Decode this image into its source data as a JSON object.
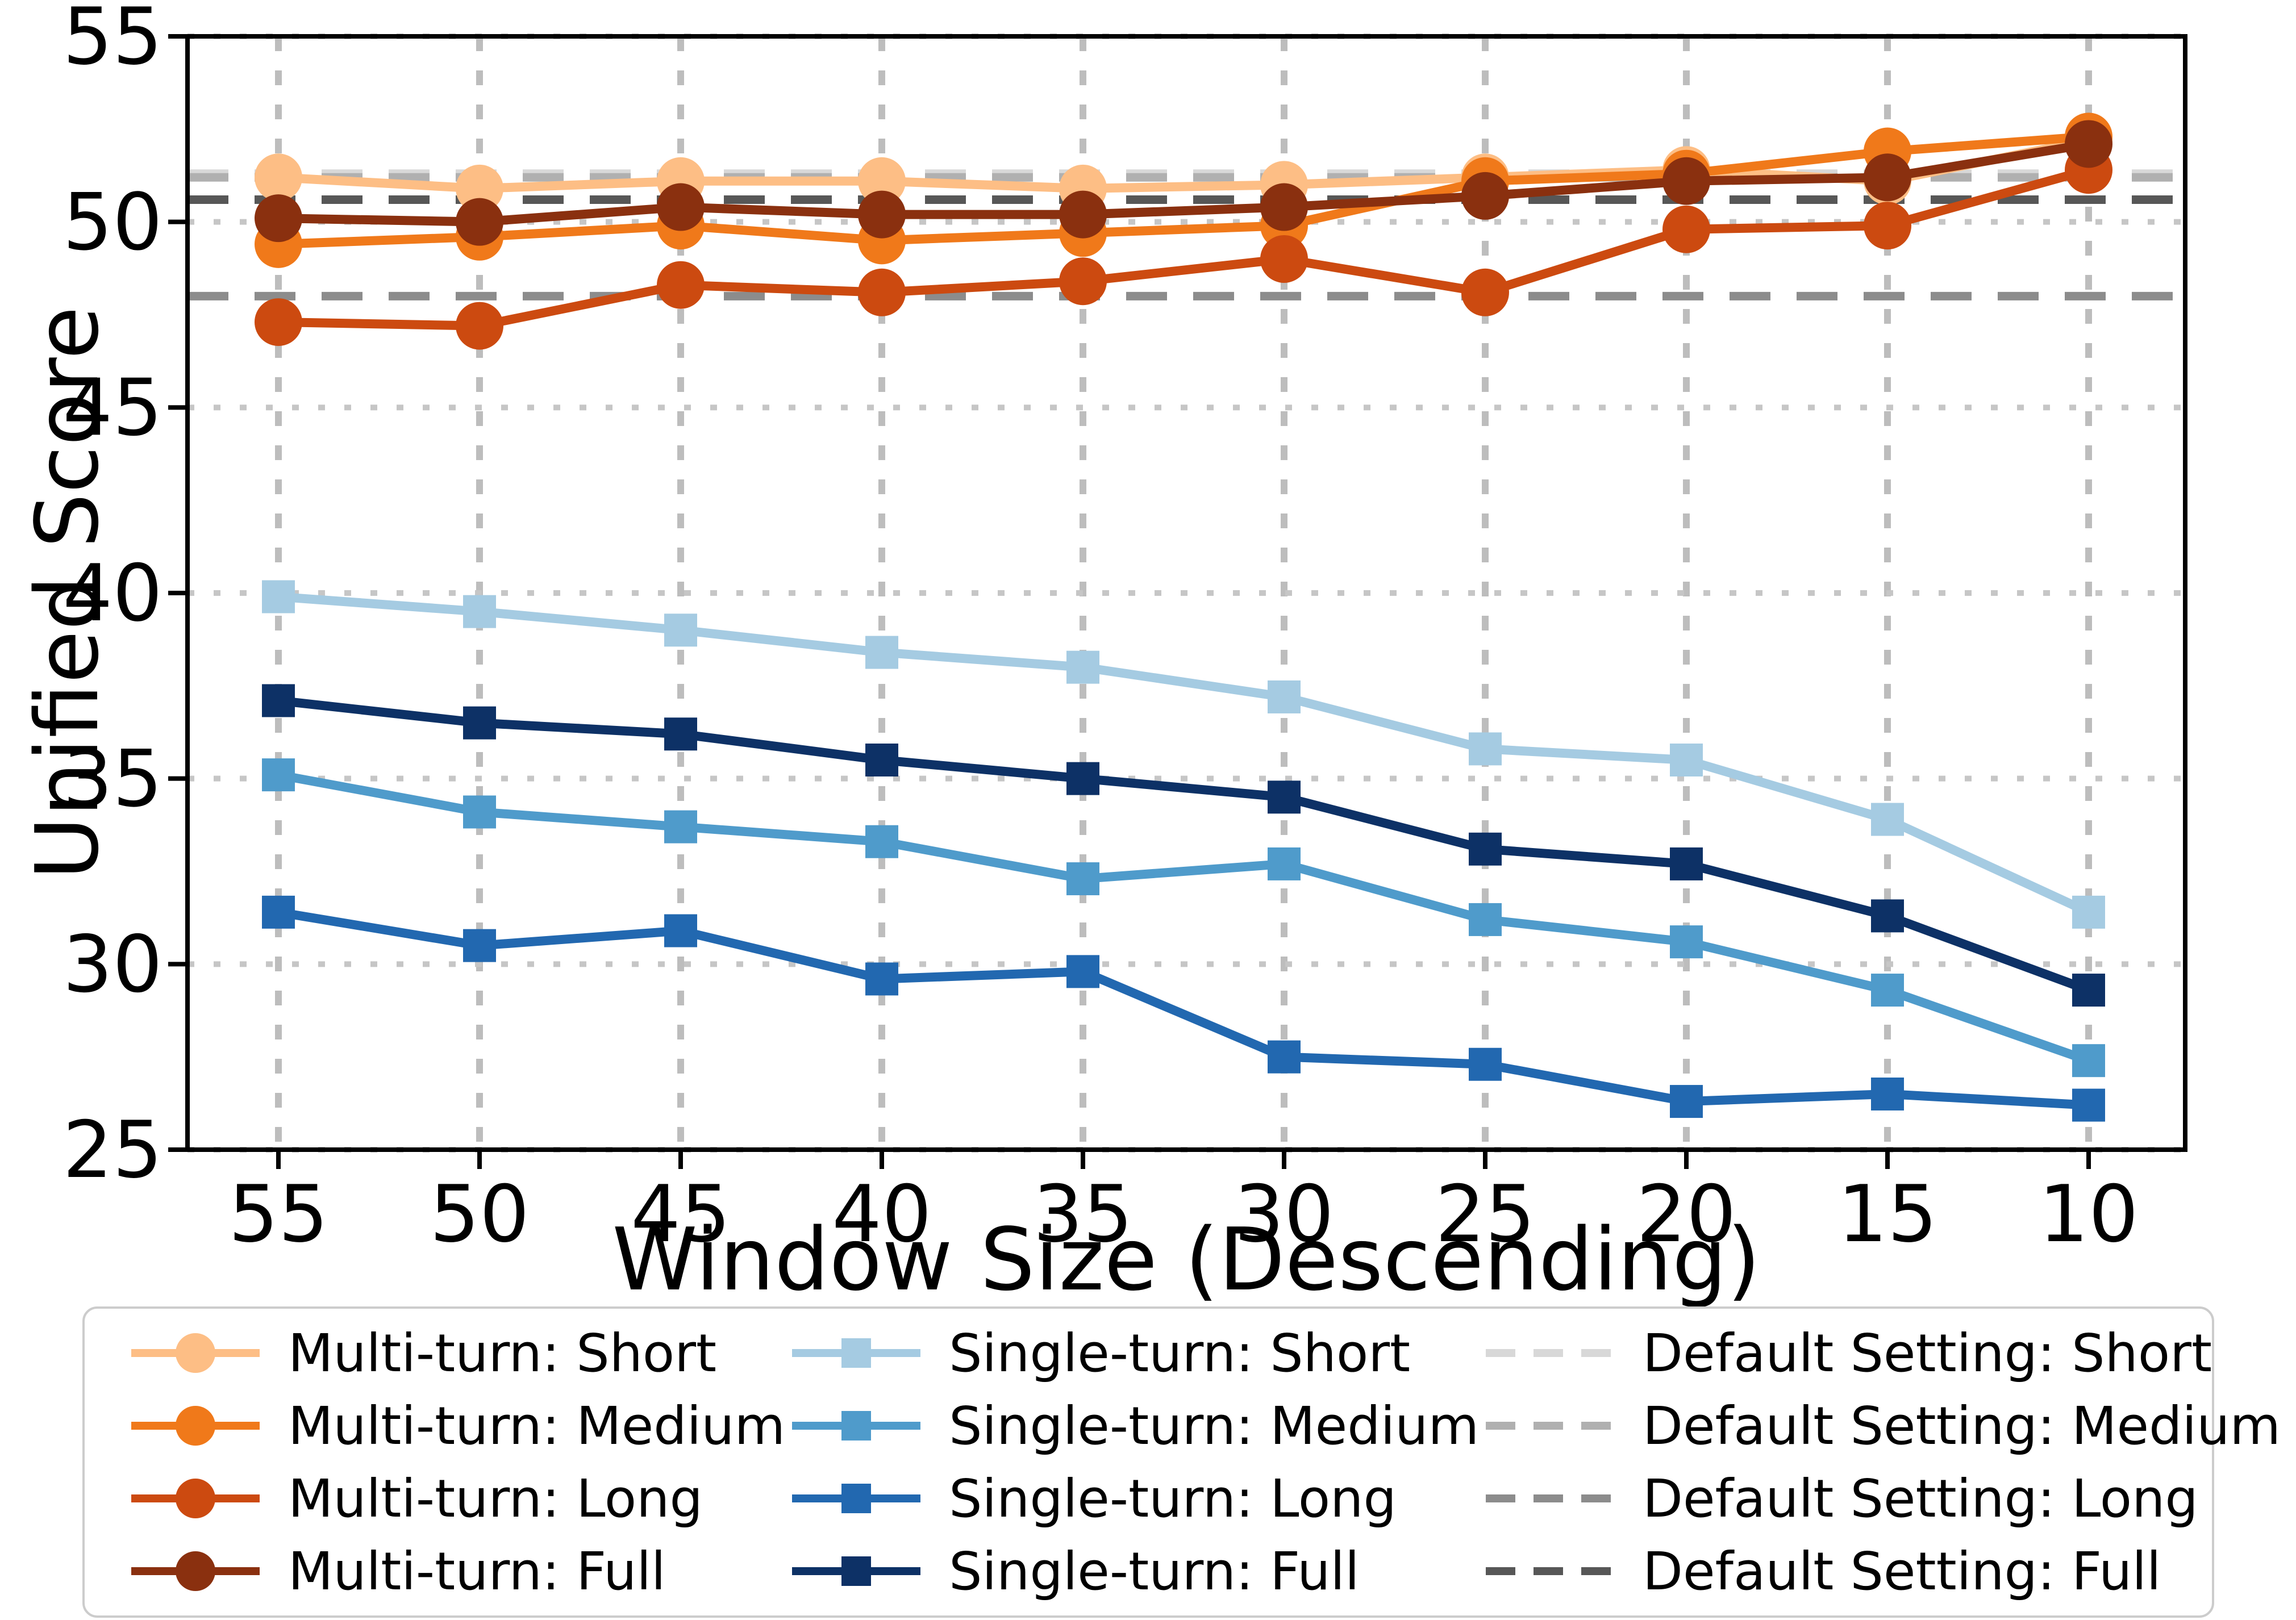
{
  "chart_data": {
    "type": "line",
    "title": "",
    "xlabel": "Window Size (Descending)",
    "ylabel": "Unified Score",
    "x": [
      55,
      50,
      45,
      40,
      35,
      30,
      25,
      20,
      15,
      10
    ],
    "x_order": "descending",
    "ylim": [
      25,
      55
    ],
    "yticks": [
      25,
      30,
      35,
      40,
      45,
      50,
      55
    ],
    "grid": "dotted",
    "legend_position": "below",
    "series": [
      {
        "name": "Multi-turn: Short",
        "group": "multi-turn",
        "marker": "circle",
        "color": "#fdbe85",
        "values": [
          51.2,
          50.9,
          51.1,
          51.1,
          50.9,
          51.0,
          51.2,
          51.4,
          51.1,
          52.2
        ]
      },
      {
        "name": "Multi-turn: Medium",
        "group": "multi-turn",
        "marker": "circle",
        "color": "#f0791a",
        "values": [
          49.4,
          49.6,
          49.9,
          49.5,
          49.7,
          49.9,
          51.1,
          51.3,
          51.9,
          52.3
        ]
      },
      {
        "name": "Multi-turn: Long",
        "group": "multi-turn",
        "marker": "circle",
        "color": "#cc4a10",
        "values": [
          47.3,
          47.2,
          48.3,
          48.1,
          48.4,
          49.0,
          48.1,
          49.8,
          49.9,
          51.4
        ]
      },
      {
        "name": "Multi-turn: Full",
        "group": "multi-turn",
        "marker": "circle",
        "color": "#8a300f",
        "values": [
          50.1,
          50.0,
          50.4,
          50.2,
          50.2,
          50.4,
          50.7,
          51.1,
          51.2,
          52.1
        ]
      },
      {
        "name": "Single-turn: Short",
        "group": "single-turn",
        "marker": "square",
        "color": "#a5cbe2",
        "values": [
          39.9,
          39.5,
          39.0,
          38.4,
          38.0,
          37.2,
          35.8,
          35.5,
          33.9,
          31.4
        ]
      },
      {
        "name": "Single-turn: Medium",
        "group": "single-turn",
        "marker": "square",
        "color": "#4f9bcb",
        "values": [
          35.1,
          34.1,
          33.7,
          33.3,
          32.3,
          32.7,
          31.2,
          30.6,
          29.3,
          27.4
        ]
      },
      {
        "name": "Single-turn: Long",
        "group": "single-turn",
        "marker": "square",
        "color": "#2268b0",
        "values": [
          31.4,
          30.5,
          30.9,
          29.6,
          29.8,
          27.5,
          27.3,
          26.3,
          26.5,
          26.2
        ]
      },
      {
        "name": "Single-turn: Full",
        "group": "single-turn",
        "marker": "square",
        "color": "#0d3166",
        "values": [
          37.1,
          36.5,
          36.2,
          35.5,
          35.0,
          34.5,
          33.1,
          32.7,
          31.3,
          29.3
        ]
      }
    ],
    "reference_lines": [
      {
        "name": "Default Setting: Short",
        "style": "dashed",
        "color": "#d8d8d8",
        "value": 51.3
      },
      {
        "name": "Default Setting: Medium",
        "style": "dashed",
        "color": "#b0b0b0",
        "value": 51.2
      },
      {
        "name": "Default Setting: Long",
        "style": "dashed",
        "color": "#8c8c8c",
        "value": 48.0
      },
      {
        "name": "Default Setting: Full",
        "style": "dashed",
        "color": "#575757",
        "value": 50.6
      }
    ],
    "colors": {
      "axis": "#000000",
      "grid": "#bdbdbd"
    }
  }
}
